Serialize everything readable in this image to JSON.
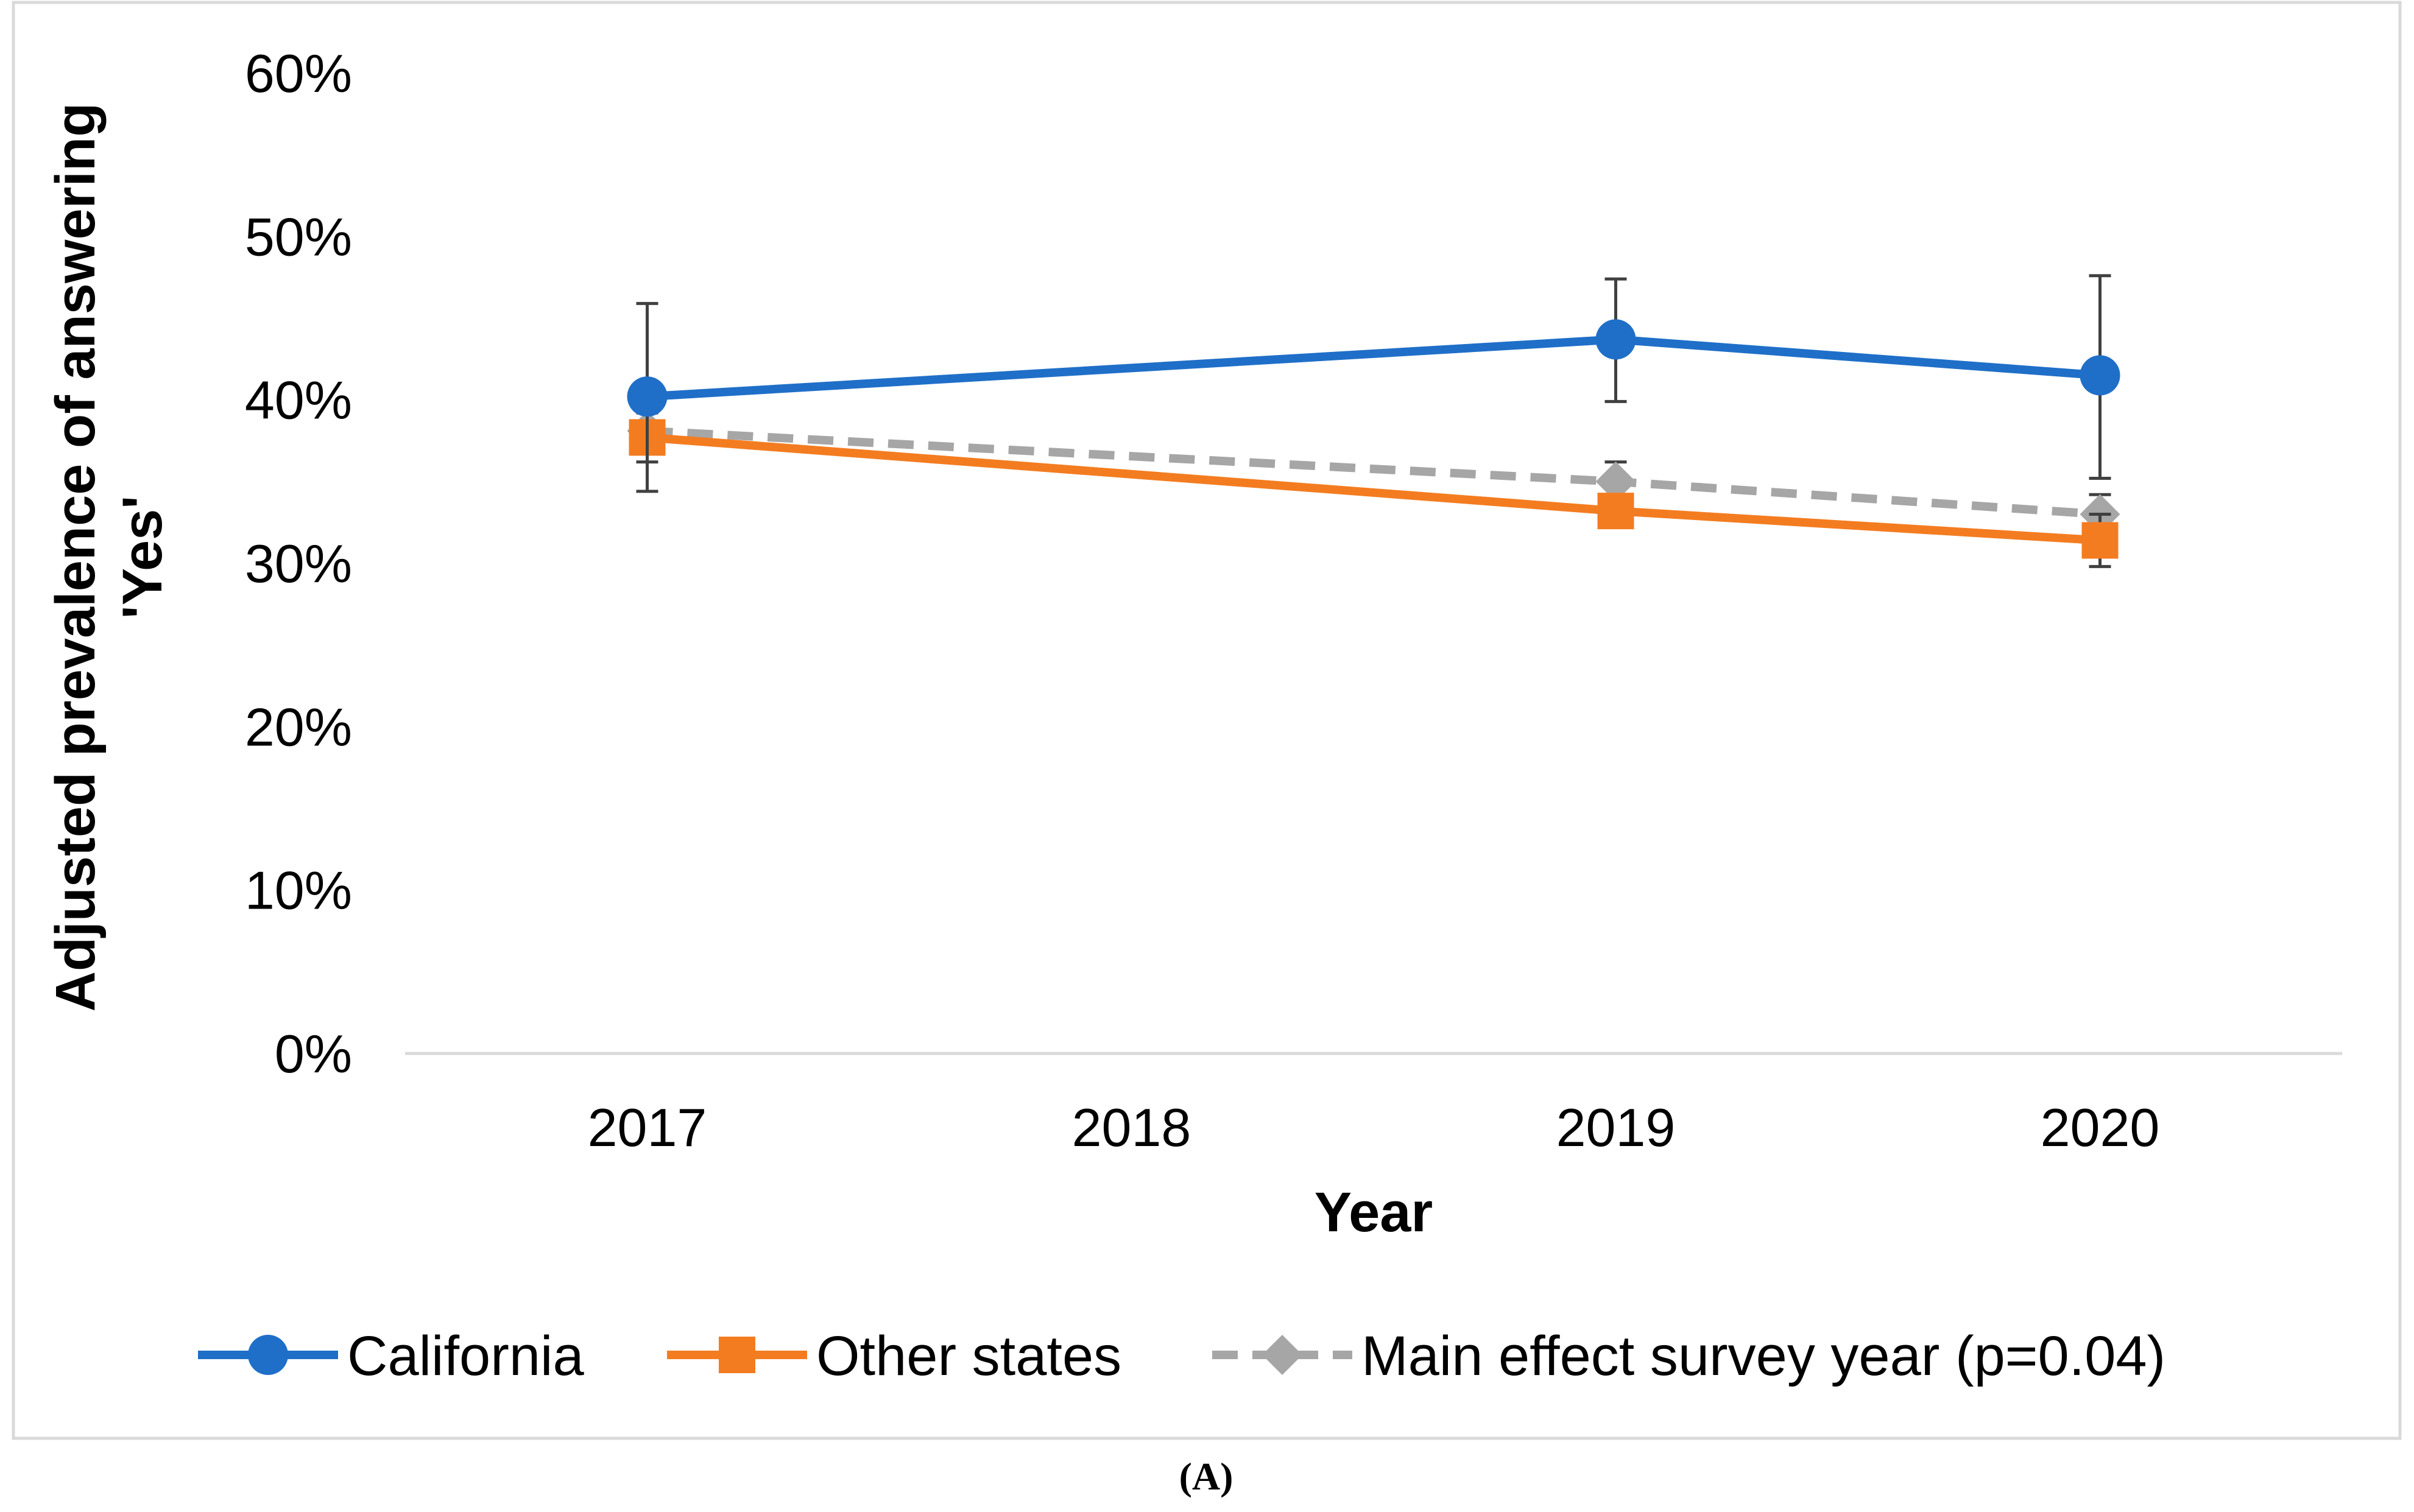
{
  "chart_data": {
    "type": "line",
    "title": "",
    "xlabel": "Year",
    "ylabel_line1": "Adjusted prevalence of answering",
    "ylabel_line2": "'Yes'",
    "categories": [
      "2017",
      "2018",
      "2019",
      "2020"
    ],
    "ylim": [
      0,
      0.6
    ],
    "yticks": [
      0,
      0.1,
      0.2,
      0.3,
      0.4,
      0.5,
      0.6
    ],
    "ytick_labels": [
      "0%",
      "10%",
      "20%",
      "30%",
      "40%",
      "50%",
      "60%"
    ],
    "legend_position": "bottom",
    "series": [
      {
        "name": "California",
        "color": "#1F6FC8",
        "marker": "circle",
        "style": "solid",
        "x": [
          "2017",
          "2019",
          "2020"
        ],
        "values": [
          0.402,
          0.437,
          0.415
        ],
        "err_low": [
          0.344,
          0.399,
          0.352
        ],
        "err_high": [
          0.459,
          0.474,
          0.476
        ]
      },
      {
        "name": "Other states",
        "color": "#F47C20",
        "marker": "square",
        "style": "solid",
        "x": [
          "2017",
          "2019",
          "2020"
        ],
        "values": [
          0.377,
          0.332,
          0.314
        ],
        "err_low": [
          0.362,
          0.322,
          0.298
        ],
        "err_high": [
          0.392,
          0.342,
          0.33
        ]
      },
      {
        "name": "Main effect survey year (p=0.04)",
        "color": "#A6A6A6",
        "marker": "diamond",
        "style": "dashed",
        "x": [
          "2017",
          "2019",
          "2020"
        ],
        "values": [
          0.381,
          0.35,
          0.33
        ],
        "err_low": [
          0.369,
          0.338,
          0.318
        ],
        "err_high": [
          0.393,
          0.362,
          0.342
        ]
      }
    ],
    "caption": "(A)"
  }
}
